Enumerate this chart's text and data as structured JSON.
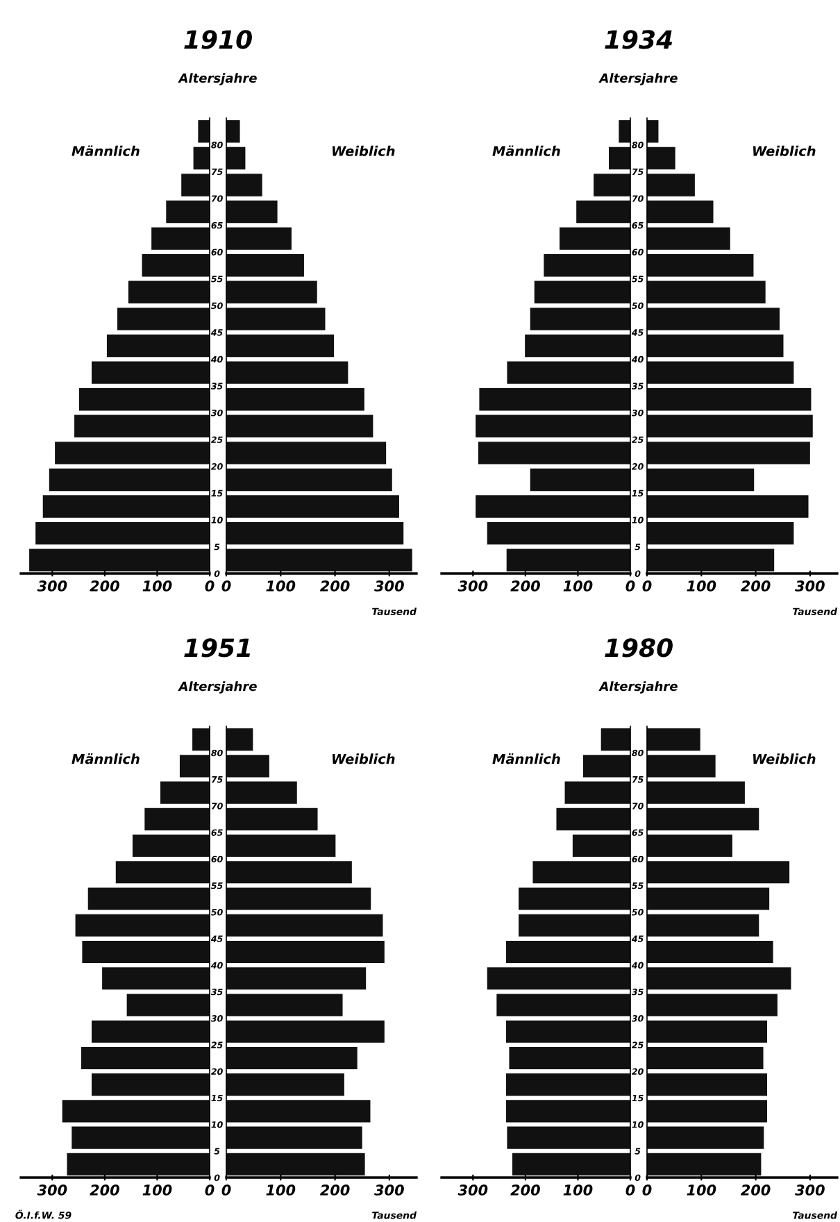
{
  "chart_data": [
    {
      "type": "bar",
      "orientation": "horizontal",
      "title": "1910",
      "subtitle": "Altersjahre",
      "x": [
        2.5,
        7.5,
        12.5,
        17.5,
        22.5,
        27.5,
        32.5,
        37.5,
        42.5,
        47.5,
        52.5,
        57.5,
        62.5,
        67.5,
        72.5,
        77.5,
        82.5
      ],
      "series": [
        {
          "name": "Männlich",
          "color": "#111111",
          "values": [
            344,
            332,
            318,
            306,
            295,
            258,
            249,
            225,
            196,
            176,
            155,
            129,
            111,
            83,
            54,
            31,
            22
          ]
        }
      ],
      "xlim": [
        360,
        0
      ],
      "xticks": [
        0,
        100,
        200,
        300
      ],
      "ylim": [
        0,
        85
      ],
      "yticks": [
        0,
        5,
        10,
        15,
        20,
        25,
        30,
        35,
        40,
        45,
        50,
        55,
        60,
        65,
        70,
        75,
        80
      ],
      "tick_labels": "x"
    },
    {
      "type": "bar",
      "orientation": "horizontal",
      "xlabel": "Tausend",
      "x": [
        2.5,
        7.5,
        12.5,
        17.5,
        22.5,
        27.5,
        32.5,
        37.5,
        42.5,
        47.5,
        52.5,
        57.5,
        62.5,
        67.5,
        72.5,
        77.5,
        82.5
      ],
      "series": [
        {
          "name": "Weiblich",
          "color": "#111111",
          "values": [
            342,
            326,
            318,
            305,
            294,
            270,
            254,
            224,
            198,
            182,
            167,
            143,
            120,
            94,
            66,
            35,
            25
          ]
        }
      ],
      "xlim": [
        0,
        350
      ],
      "xticks": [
        0,
        100,
        200,
        300
      ],
      "ylim": [
        0,
        85
      ],
      "yticks": [
        0,
        5,
        10,
        15,
        20,
        25,
        30,
        35,
        40,
        45,
        50,
        55,
        60,
        65,
        70,
        75,
        80
      ]
    },
    {
      "type": "bar",
      "orientation": "horizontal",
      "title": "1934",
      "subtitle": "Altersjahre",
      "x": [
        2.5,
        7.5,
        12.5,
        17.5,
        22.5,
        27.5,
        32.5,
        37.5,
        42.5,
        47.5,
        52.5,
        57.5,
        62.5,
        67.5,
        72.5,
        77.5,
        82.5
      ],
      "series": [
        {
          "name": "Männlich",
          "color": "#111111",
          "values": [
            236,
            273,
            295,
            191,
            290,
            295,
            288,
            235,
            201,
            191,
            183,
            165,
            135,
            103,
            70,
            41,
            22
          ]
        }
      ],
      "xlim": [
        360,
        0
      ],
      "xticks": [
        0,
        100,
        200,
        300
      ],
      "ylim": [
        0,
        85
      ],
      "yticks": [
        0,
        5,
        10,
        15,
        20,
        25,
        30,
        35,
        40,
        45,
        50,
        55,
        60,
        65,
        70,
        75,
        80
      ],
      "tick_labels": "x"
    },
    {
      "type": "bar",
      "orientation": "horizontal",
      "xlabel": "Tausend",
      "x": [
        2.5,
        7.5,
        12.5,
        17.5,
        22.5,
        27.5,
        32.5,
        37.5,
        42.5,
        47.5,
        52.5,
        57.5,
        62.5,
        67.5,
        72.5,
        77.5,
        82.5
      ],
      "series": [
        {
          "name": "Weiblich",
          "color": "#111111",
          "values": [
            234,
            270,
            297,
            197,
            300,
            305,
            302,
            270,
            251,
            244,
            218,
            196,
            153,
            122,
            88,
            52,
            21
          ]
        }
      ],
      "xlim": [
        0,
        350
      ],
      "xticks": [
        0,
        100,
        200,
        300
      ],
      "ylim": [
        0,
        85
      ],
      "yticks": [
        0,
        5,
        10,
        15,
        20,
        25,
        30,
        35,
        40,
        45,
        50,
        55,
        60,
        65,
        70,
        75,
        80
      ]
    },
    {
      "type": "bar",
      "orientation": "horizontal",
      "title": "1951",
      "subtitle": "Altersjahre",
      "annotations": [
        "Ö.I.f.W. 59"
      ],
      "x": [
        2.5,
        7.5,
        12.5,
        17.5,
        22.5,
        27.5,
        32.5,
        37.5,
        42.5,
        47.5,
        52.5,
        57.5,
        62.5,
        67.5,
        72.5,
        77.5,
        82.5
      ],
      "series": [
        {
          "name": "Männlich",
          "color": "#111111",
          "values": [
            272,
            263,
            281,
            225,
            245,
            225,
            158,
            205,
            243,
            256,
            232,
            179,
            147,
            124,
            94,
            57,
            33
          ]
        }
      ],
      "xlim": [
        360,
        0
      ],
      "xticks": [
        0,
        100,
        200,
        300
      ],
      "ylim": [
        0,
        85
      ],
      "yticks": [
        0,
        5,
        10,
        15,
        20,
        25,
        30,
        35,
        40,
        45,
        50,
        55,
        60,
        65,
        70,
        75,
        80
      ],
      "tick_labels": "x"
    },
    {
      "type": "bar",
      "orientation": "horizontal",
      "xlabel": "Tausend",
      "x": [
        2.5,
        7.5,
        12.5,
        17.5,
        22.5,
        27.5,
        32.5,
        37.5,
        42.5,
        47.5,
        52.5,
        57.5,
        62.5,
        67.5,
        72.5,
        77.5,
        82.5
      ],
      "series": [
        {
          "name": "Weiblich",
          "color": "#111111",
          "values": [
            255,
            250,
            265,
            217,
            241,
            291,
            214,
            257,
            291,
            288,
            266,
            231,
            201,
            168,
            130,
            79,
            49
          ]
        }
      ],
      "xlim": [
        0,
        350
      ],
      "xticks": [
        0,
        100,
        200,
        300
      ],
      "ylim": [
        0,
        85
      ],
      "yticks": [
        0,
        5,
        10,
        15,
        20,
        25,
        30,
        35,
        40,
        45,
        50,
        55,
        60,
        65,
        70,
        75,
        80
      ]
    },
    {
      "type": "bar",
      "orientation": "horizontal",
      "title": "1980",
      "subtitle": "Altersjahre",
      "x": [
        2.5,
        7.5,
        12.5,
        17.5,
        22.5,
        27.5,
        32.5,
        37.5,
        42.5,
        47.5,
        52.5,
        57.5,
        62.5,
        67.5,
        72.5,
        77.5,
        82.5
      ],
      "series": [
        {
          "name": "Männlich",
          "color": "#111111",
          "values": [
            225,
            235,
            237,
            237,
            231,
            237,
            255,
            273,
            237,
            213,
            213,
            186,
            110,
            141,
            125,
            90,
            56
          ]
        }
      ],
      "xlim": [
        360,
        0
      ],
      "xticks": [
        0,
        100,
        200,
        300
      ],
      "ylim": [
        0,
        85
      ],
      "yticks": [
        0,
        5,
        10,
        15,
        20,
        25,
        30,
        35,
        40,
        45,
        50,
        55,
        60,
        65,
        70,
        75,
        80
      ],
      "tick_labels": "x"
    },
    {
      "type": "bar",
      "orientation": "horizontal",
      "xlabel": "Tausend",
      "x": [
        2.5,
        7.5,
        12.5,
        17.5,
        22.5,
        27.5,
        32.5,
        37.5,
        42.5,
        47.5,
        52.5,
        57.5,
        62.5,
        67.5,
        72.5,
        77.5,
        82.5
      ],
      "series": [
        {
          "name": "Weiblich",
          "color": "#111111",
          "values": [
            210,
            215,
            221,
            221,
            214,
            221,
            240,
            265,
            232,
            206,
            225,
            262,
            157,
            206,
            180,
            126,
            98
          ]
        }
      ],
      "xlim": [
        0,
        350
      ],
      "xticks": [
        0,
        100,
        200,
        300
      ],
      "ylim": [
        0,
        85
      ],
      "yticks": [
        0,
        5,
        10,
        15,
        20,
        25,
        30,
        35,
        40,
        45,
        50,
        55,
        60,
        65,
        70,
        75,
        80
      ]
    }
  ]
}
